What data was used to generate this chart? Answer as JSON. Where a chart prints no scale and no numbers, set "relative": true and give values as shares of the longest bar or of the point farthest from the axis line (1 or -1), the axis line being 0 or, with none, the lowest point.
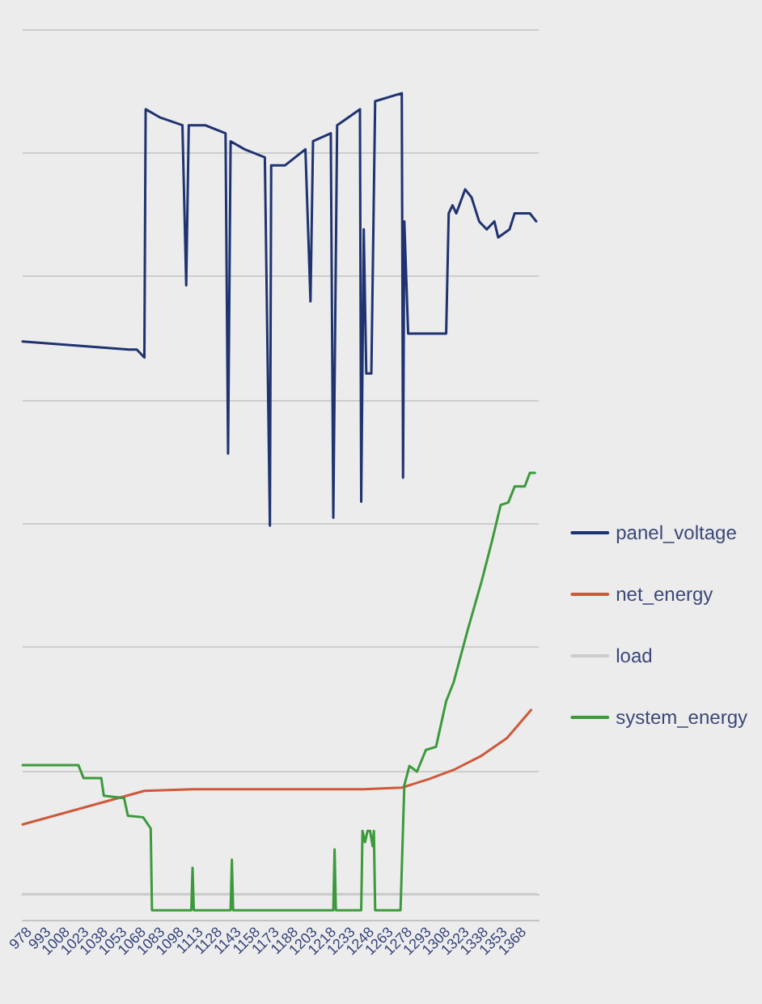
{
  "chart_data": {
    "type": "line",
    "relative": true,
    "xlim": [
      973,
      1380
    ],
    "xticks": [
      978,
      993,
      1008,
      1023,
      1038,
      1053,
      1068,
      1083,
      1098,
      1113,
      1128,
      1143,
      1158,
      1173,
      1188,
      1203,
      1218,
      1233,
      1248,
      1263,
      1278,
      1293,
      1308,
      1323,
      1338,
      1353,
      1368
    ],
    "series": [
      {
        "name": "panel_voltage",
        "color": "#1f3370",
        "x": [
          973,
          1057,
          1063,
          1069,
          1070,
          1081,
          1099,
          1102,
          1104,
          1117,
          1133,
          1135,
          1137,
          1148,
          1164,
          1168,
          1169,
          1180,
          1196,
          1200,
          1202,
          1216,
          1218,
          1221,
          1239,
          1240,
          1242,
          1244,
          1248,
          1251,
          1272,
          1273,
          1274,
          1277,
          1307,
          1309,
          1312,
          1315,
          1322,
          1327,
          1333,
          1339,
          1345,
          1348,
          1357,
          1361,
          1373,
          1378
        ],
        "values": [
          0.69,
          0.68,
          0.68,
          0.67,
          0.98,
          0.97,
          0.96,
          0.76,
          0.96,
          0.96,
          0.95,
          0.55,
          0.94,
          0.93,
          0.92,
          0.46,
          0.91,
          0.91,
          0.93,
          0.74,
          0.94,
          0.95,
          0.47,
          0.96,
          0.98,
          0.49,
          0.83,
          0.65,
          0.65,
          0.99,
          1,
          0.52,
          0.84,
          0.7,
          0.7,
          0.85,
          0.86,
          0.85,
          0.88,
          0.87,
          0.84,
          0.83,
          0.84,
          0.82,
          0.83,
          0.85,
          0.85,
          0.84
        ]
      },
      {
        "name": "net_energy",
        "color": "#d0583a",
        "x": [
          973,
          1069,
          1107,
          1242,
          1272,
          1294,
          1314,
          1334,
          1355,
          1374
        ],
        "values": [
          0.087,
          0.129,
          0.131,
          0.131,
          0.133,
          0.144,
          0.156,
          0.172,
          0.195,
          0.23
        ]
      },
      {
        "name": "load",
        "color": "#cccccc",
        "x": [
          973,
          1378
        ],
        "values": [
          0,
          0
        ]
      },
      {
        "name": "system_energy",
        "color": "#3c9a3c",
        "x": [
          973,
          1017,
          1021,
          1035,
          1037,
          1053,
          1056,
          1068,
          1074,
          1075,
          1106,
          1107,
          1108,
          1137,
          1138,
          1139,
          1218,
          1219,
          1220,
          1240,
          1241,
          1243,
          1245,
          1247,
          1249,
          1250,
          1251,
          1271,
          1274,
          1278,
          1284,
          1291,
          1299,
          1307,
          1313,
          1324,
          1335,
          1343,
          1350,
          1356,
          1361,
          1369,
          1373,
          1377
        ],
        "values": [
          0.161,
          0.161,
          0.145,
          0.145,
          0.123,
          0.12,
          0.098,
          0.096,
          0.082,
          -0.02,
          -0.02,
          0.033,
          -0.02,
          -0.02,
          0.043,
          -0.02,
          -0.02,
          0.056,
          -0.02,
          -0.02,
          0.079,
          0.065,
          0.079,
          0.079,
          0.06,
          0.079,
          -0.02,
          -0.02,
          0.136,
          0.16,
          0.153,
          0.18,
          0.184,
          0.241,
          0.265,
          0.33,
          0.391,
          0.44,
          0.486,
          0.489,
          0.509,
          0.509,
          0.526,
          0.526
        ]
      }
    ],
    "grid": "y",
    "legend": "right",
    "marker": "none",
    "line_style": "solid"
  }
}
